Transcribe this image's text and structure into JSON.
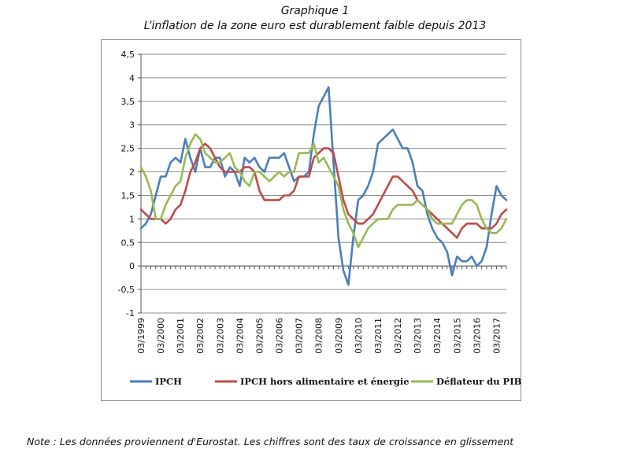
{
  "header": {
    "title": "Graphique 1",
    "subtitle": "L’inflation de la zone euro est durablement faible depuis 2013"
  },
  "note": "Note : Les données proviennent d'Eurostat. Les chiffres sont des taux de croissance en glissement",
  "chart_data": {
    "type": "line",
    "title": "Graphique 1",
    "subtitle": "L’inflation de la zone euro est durablement faible depuis 2013",
    "xlabel": "",
    "ylabel": "",
    "ylim": [
      -1,
      4.5
    ],
    "yticks": [
      -1,
      -0.5,
      0,
      0.5,
      1,
      1.5,
      2,
      2.5,
      3,
      3.5,
      4,
      4.5
    ],
    "ytick_labels": [
      "-1",
      "-0,5",
      "0",
      "0,5",
      "1",
      "1,5",
      "2",
      "2,5",
      "3",
      "3,5",
      "4",
      "4,5"
    ],
    "grid": "horizontal",
    "legend_position": "bottom",
    "x_tick_labels": [
      "03/1999",
      "03/2000",
      "03/2001",
      "03/2002",
      "03/2003",
      "03/2004",
      "03/2005",
      "03/2006",
      "03/2007",
      "03/2008",
      "03/2009",
      "03/2010",
      "03/2011",
      "03/2012",
      "03/2013",
      "03/2014",
      "03/2015",
      "03/2016",
      "03/2017"
    ],
    "x_start": "1999-03",
    "x_end": "2017-09",
    "series": [
      {
        "name": "IPCH",
        "color": "#4a7ebb",
        "points": [
          [
            "1999-03",
            0.8
          ],
          [
            "1999-06",
            0.9
          ],
          [
            "1999-09",
            1.1
          ],
          [
            "1999-12",
            1.5
          ],
          [
            "2000-03",
            1.9
          ],
          [
            "2000-06",
            1.9
          ],
          [
            "2000-09",
            2.2
          ],
          [
            "2000-12",
            2.3
          ],
          [
            "2001-03",
            2.2
          ],
          [
            "2001-06",
            2.7
          ],
          [
            "2001-09",
            2.3
          ],
          [
            "2001-12",
            2.0
          ],
          [
            "2002-03",
            2.5
          ],
          [
            "2002-06",
            2.1
          ],
          [
            "2002-09",
            2.1
          ],
          [
            "2002-12",
            2.3
          ],
          [
            "2003-03",
            2.3
          ],
          [
            "2003-06",
            1.9
          ],
          [
            "2003-09",
            2.1
          ],
          [
            "2003-12",
            2.0
          ],
          [
            "2004-03",
            1.7
          ],
          [
            "2004-06",
            2.3
          ],
          [
            "2004-09",
            2.2
          ],
          [
            "2004-12",
            2.3
          ],
          [
            "2005-03",
            2.1
          ],
          [
            "2005-06",
            2.0
          ],
          [
            "2005-09",
            2.3
          ],
          [
            "2005-12",
            2.3
          ],
          [
            "2006-03",
            2.3
          ],
          [
            "2006-06",
            2.4
          ],
          [
            "2006-09",
            2.1
          ],
          [
            "2006-12",
            1.8
          ],
          [
            "2007-03",
            1.9
          ],
          [
            "2007-06",
            1.9
          ],
          [
            "2007-09",
            2.0
          ],
          [
            "2007-12",
            2.8
          ],
          [
            "2008-03",
            3.4
          ],
          [
            "2008-06",
            3.6
          ],
          [
            "2008-09",
            3.8
          ],
          [
            "2008-12",
            2.2
          ],
          [
            "2009-03",
            0.6
          ],
          [
            "2009-06",
            -0.1
          ],
          [
            "2009-09",
            -0.4
          ],
          [
            "2009-12",
            0.6
          ],
          [
            "2010-03",
            1.4
          ],
          [
            "2010-06",
            1.5
          ],
          [
            "2010-09",
            1.7
          ],
          [
            "2010-12",
            2.0
          ],
          [
            "2011-03",
            2.6
          ],
          [
            "2011-06",
            2.7
          ],
          [
            "2011-09",
            2.8
          ],
          [
            "2011-12",
            2.9
          ],
          [
            "2012-03",
            2.7
          ],
          [
            "2012-06",
            2.5
          ],
          [
            "2012-09",
            2.5
          ],
          [
            "2012-12",
            2.2
          ],
          [
            "2013-03",
            1.7
          ],
          [
            "2013-06",
            1.6
          ],
          [
            "2013-09",
            1.1
          ],
          [
            "2013-12",
            0.8
          ],
          [
            "2014-03",
            0.6
          ],
          [
            "2014-06",
            0.5
          ],
          [
            "2014-09",
            0.3
          ],
          [
            "2014-12",
            -0.2
          ],
          [
            "2015-03",
            0.2
          ],
          [
            "2015-06",
            0.1
          ],
          [
            "2015-09",
            0.1
          ],
          [
            "2015-12",
            0.2
          ],
          [
            "2016-03",
            0.0
          ],
          [
            "2016-06",
            0.1
          ],
          [
            "2016-09",
            0.4
          ],
          [
            "2016-12",
            1.1
          ],
          [
            "2017-03",
            1.7
          ],
          [
            "2017-06",
            1.5
          ],
          [
            "2017-09",
            1.4
          ]
        ]
      },
      {
        "name": "IPCH hors alimentaire et énergie",
        "color": "#be4b48",
        "points": [
          [
            "1999-03",
            1.2
          ],
          [
            "1999-06",
            1.1
          ],
          [
            "1999-09",
            1.0
          ],
          [
            "1999-12",
            1.0
          ],
          [
            "2000-03",
            1.0
          ],
          [
            "2000-06",
            0.9
          ],
          [
            "2000-09",
            1.0
          ],
          [
            "2000-12",
            1.2
          ],
          [
            "2001-03",
            1.3
          ],
          [
            "2001-06",
            1.6
          ],
          [
            "2001-09",
            2.0
          ],
          [
            "2001-12",
            2.2
          ],
          [
            "2002-03",
            2.5
          ],
          [
            "2002-06",
            2.6
          ],
          [
            "2002-09",
            2.5
          ],
          [
            "2002-12",
            2.3
          ],
          [
            "2003-03",
            2.1
          ],
          [
            "2003-06",
            2.0
          ],
          [
            "2003-09",
            2.0
          ],
          [
            "2003-12",
            2.0
          ],
          [
            "2004-03",
            2.0
          ],
          [
            "2004-06",
            2.1
          ],
          [
            "2004-09",
            2.1
          ],
          [
            "2004-12",
            2.0
          ],
          [
            "2005-03",
            1.6
          ],
          [
            "2005-06",
            1.4
          ],
          [
            "2005-09",
            1.4
          ],
          [
            "2005-12",
            1.4
          ],
          [
            "2006-03",
            1.4
          ],
          [
            "2006-06",
            1.5
          ],
          [
            "2006-09",
            1.5
          ],
          [
            "2006-12",
            1.6
          ],
          [
            "2007-03",
            1.9
          ],
          [
            "2007-06",
            1.9
          ],
          [
            "2007-09",
            1.9
          ],
          [
            "2007-12",
            2.3
          ],
          [
            "2008-03",
            2.4
          ],
          [
            "2008-06",
            2.5
          ],
          [
            "2008-09",
            2.5
          ],
          [
            "2008-12",
            2.4
          ],
          [
            "2009-03",
            1.9
          ],
          [
            "2009-06",
            1.4
          ],
          [
            "2009-09",
            1.1
          ],
          [
            "2009-12",
            1.0
          ],
          [
            "2010-03",
            0.9
          ],
          [
            "2010-06",
            0.9
          ],
          [
            "2010-09",
            1.0
          ],
          [
            "2010-12",
            1.1
          ],
          [
            "2011-03",
            1.3
          ],
          [
            "2011-06",
            1.5
          ],
          [
            "2011-09",
            1.7
          ],
          [
            "2011-12",
            1.9
          ],
          [
            "2012-03",
            1.9
          ],
          [
            "2012-06",
            1.8
          ],
          [
            "2012-09",
            1.7
          ],
          [
            "2012-12",
            1.6
          ],
          [
            "2013-03",
            1.4
          ],
          [
            "2013-06",
            1.3
          ],
          [
            "2013-09",
            1.2
          ],
          [
            "2013-12",
            1.1
          ],
          [
            "2014-03",
            1.0
          ],
          [
            "2014-06",
            0.9
          ],
          [
            "2014-09",
            0.8
          ],
          [
            "2014-12",
            0.7
          ],
          [
            "2015-03",
            0.6
          ],
          [
            "2015-06",
            0.8
          ],
          [
            "2015-09",
            0.9
          ],
          [
            "2015-12",
            0.9
          ],
          [
            "2016-03",
            0.9
          ],
          [
            "2016-06",
            0.8
          ],
          [
            "2016-09",
            0.8
          ],
          [
            "2016-12",
            0.8
          ],
          [
            "2017-03",
            0.9
          ],
          [
            "2017-06",
            1.1
          ],
          [
            "2017-09",
            1.2
          ]
        ]
      },
      {
        "name": "Déflateur du PIB",
        "color": "#98b954",
        "points": [
          [
            "1999-03",
            2.1
          ],
          [
            "1999-06",
            1.9
          ],
          [
            "1999-09",
            1.6
          ],
          [
            "1999-12",
            1.0
          ],
          [
            "2000-03",
            1.0
          ],
          [
            "2000-06",
            1.3
          ],
          [
            "2000-09",
            1.5
          ],
          [
            "2000-12",
            1.7
          ],
          [
            "2001-03",
            1.8
          ],
          [
            "2001-06",
            2.3
          ],
          [
            "2001-09",
            2.6
          ],
          [
            "2001-12",
            2.8
          ],
          [
            "2002-03",
            2.7
          ],
          [
            "2002-06",
            2.4
          ],
          [
            "2002-09",
            2.3
          ],
          [
            "2002-12",
            2.2
          ],
          [
            "2003-03",
            2.2
          ],
          [
            "2003-06",
            2.3
          ],
          [
            "2003-09",
            2.4
          ],
          [
            "2003-12",
            2.1
          ],
          [
            "2004-03",
            2.0
          ],
          [
            "2004-06",
            1.8
          ],
          [
            "2004-09",
            1.7
          ],
          [
            "2004-12",
            2.0
          ],
          [
            "2005-03",
            2.0
          ],
          [
            "2005-06",
            1.9
          ],
          [
            "2005-09",
            1.8
          ],
          [
            "2005-12",
            1.9
          ],
          [
            "2006-03",
            2.0
          ],
          [
            "2006-06",
            1.9
          ],
          [
            "2006-09",
            2.0
          ],
          [
            "2006-12",
            2.0
          ],
          [
            "2007-03",
            2.4
          ],
          [
            "2007-06",
            2.4
          ],
          [
            "2007-09",
            2.4
          ],
          [
            "2007-12",
            2.6
          ],
          [
            "2008-03",
            2.2
          ],
          [
            "2008-06",
            2.3
          ],
          [
            "2008-09",
            2.1
          ],
          [
            "2008-12",
            1.9
          ],
          [
            "2009-03",
            1.7
          ],
          [
            "2009-06",
            1.2
          ],
          [
            "2009-09",
            0.9
          ],
          [
            "2009-12",
            0.7
          ],
          [
            "2010-03",
            0.4
          ],
          [
            "2010-06",
            0.6
          ],
          [
            "2010-09",
            0.8
          ],
          [
            "2010-12",
            0.9
          ],
          [
            "2011-03",
            1.0
          ],
          [
            "2011-06",
            1.0
          ],
          [
            "2011-09",
            1.0
          ],
          [
            "2011-12",
            1.2
          ],
          [
            "2012-03",
            1.3
          ],
          [
            "2012-06",
            1.3
          ],
          [
            "2012-09",
            1.3
          ],
          [
            "2012-12",
            1.3
          ],
          [
            "2013-03",
            1.4
          ],
          [
            "2013-06",
            1.3
          ],
          [
            "2013-09",
            1.2
          ],
          [
            "2013-12",
            1.0
          ],
          [
            "2014-03",
            0.9
          ],
          [
            "2014-06",
            0.9
          ],
          [
            "2014-09",
            0.9
          ],
          [
            "2014-12",
            0.9
          ],
          [
            "2015-03",
            1.1
          ],
          [
            "2015-06",
            1.3
          ],
          [
            "2015-09",
            1.4
          ],
          [
            "2015-12",
            1.4
          ],
          [
            "2016-03",
            1.3
          ],
          [
            "2016-06",
            1.0
          ],
          [
            "2016-09",
            0.8
          ],
          [
            "2016-12",
            0.7
          ],
          [
            "2017-03",
            0.7
          ],
          [
            "2017-06",
            0.8
          ],
          [
            "2017-09",
            1.0
          ]
        ]
      }
    ]
  }
}
